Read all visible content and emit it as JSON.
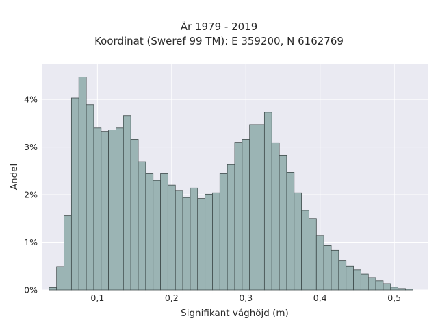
{
  "chart_data": {
    "type": "bar",
    "title_lines": [
      "År 1979 - 2019",
      "Koordinat (Sweref 99 TM): E 359200, N 6162769"
    ],
    "xlabel": "Signifikant våghöjd (m)",
    "ylabel": "Andel",
    "xlim": [
      0.025,
      0.545
    ],
    "ylim": [
      0,
      4.75
    ],
    "x_ticks": [
      0.1,
      0.2,
      0.3,
      0.4,
      0.5
    ],
    "x_tick_labels": [
      "0,1",
      "0,2",
      "0,3",
      "0,4",
      "0,5"
    ],
    "y_ticks": [
      0,
      1,
      2,
      3,
      4
    ],
    "y_tick_labels": [
      "0%",
      "1%",
      "2%",
      "3%",
      "4%"
    ],
    "grid": true,
    "bin_start": 0.035,
    "bin_width": 0.01,
    "values": [
      0.05,
      0.49,
      1.56,
      4.03,
      4.47,
      3.89,
      3.4,
      3.33,
      3.36,
      3.4,
      3.66,
      3.16,
      2.69,
      2.44,
      2.3,
      2.44,
      2.2,
      2.09,
      1.94,
      2.14,
      1.92,
      2.01,
      2.04,
      2.44,
      2.63,
      3.1,
      3.16,
      3.47,
      3.47,
      3.73,
      3.09,
      2.83,
      2.47,
      2.04,
      1.67,
      1.5,
      1.14,
      0.93,
      0.83,
      0.61,
      0.5,
      0.42,
      0.33,
      0.26,
      0.19,
      0.13,
      0.06,
      0.03,
      0.02
    ],
    "colors": {
      "bar_fill": "#9bb4b4",
      "bar_stroke": "#3e4a4a",
      "plot_bg": "#eaeaf2",
      "grid": "#ffffff"
    }
  }
}
